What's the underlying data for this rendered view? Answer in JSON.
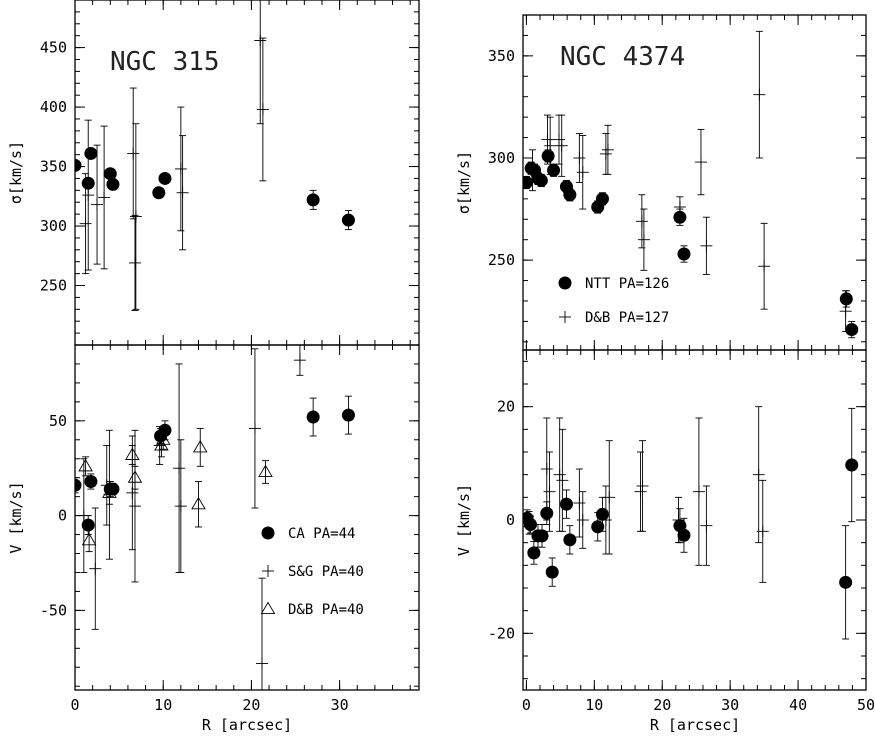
{
  "chart_data": [
    {
      "type": "scatter",
      "title": "NGC 315",
      "xlabel": "R [arcsec]",
      "panels": [
        {
          "name": "sigma",
          "ylabel": "σ[km/s]",
          "ylim": [
            200,
            490
          ],
          "yticks": [
            250,
            300,
            350,
            400,
            450
          ],
          "series": [
            {
              "name": "CA PA=44",
              "marker": "filled-circle",
              "points": [
                [
                  0,
                  351,
                  0
                ],
                [
                  1.5,
                  336,
                  0
                ],
                [
                  1.8,
                  361,
                  0
                ],
                [
                  4.0,
                  344,
                  0
                ],
                [
                  4.3,
                  335,
                  0
                ],
                [
                  9.5,
                  328,
                  0
                ],
                [
                  10.2,
                  340,
                  0
                ],
                [
                  27,
                  322,
                  8
                ],
                [
                  31,
                  305,
                  8
                ]
              ]
            },
            {
              "name": "S&G PA=40",
              "marker": "plus",
              "points": [
                [
                  1.5,
                  326,
                  63
                ],
                [
                  2.5,
                  318,
                  50
                ],
                [
                  3.3,
                  324,
                  60
                ],
                [
                  6.6,
                  361,
                  55
                ],
                [
                  6.9,
                  308,
                  78
                ],
                [
                  12,
                  348,
                  52
                ],
                [
                  12.2,
                  328,
                  48
                ],
                [
                  21.0,
                  456,
                  70
                ],
                [
                  21.3,
                  398,
                  60
                ],
                [
                  6.8,
                  269,
                  40
                ],
                [
                  1.2,
                  302,
                  42
                ]
              ]
            }
          ]
        },
        {
          "name": "velocity",
          "ylabel": "V [km/s]",
          "ylim": [
            -92,
            90
          ],
          "yticks": [
            -50,
            0,
            50
          ],
          "series": [
            {
              "name": "CA PA=44",
              "marker": "filled-circle",
              "points": [
                [
                  0,
                  16,
                  4
                ],
                [
                  1.5,
                  -5,
                  5
                ],
                [
                  1.8,
                  18,
                  4
                ],
                [
                  4.0,
                  14,
                  4
                ],
                [
                  4.3,
                  14,
                  3
                ],
                [
                  9.7,
                  42,
                  4
                ],
                [
                  10.2,
                  45,
                  5
                ],
                [
                  27,
                  52,
                  10
                ],
                [
                  31,
                  53,
                  10
                ]
              ]
            },
            {
              "name": "S&G PA=40",
              "marker": "plus",
              "points": [
                [
                  1.0,
                  0,
                  30
                ],
                [
                  2.3,
                  -28,
                  32
                ],
                [
                  3.6,
                  16,
                  21
                ],
                [
                  3.9,
                  11,
                  34
                ],
                [
                  6.5,
                  12,
                  30
                ],
                [
                  6.8,
                  5,
                  40
                ],
                [
                  11.8,
                  25,
                  55
                ],
                [
                  12.0,
                  5,
                  35
                ],
                [
                  20.4,
                  46,
                  42
                ],
                [
                  21.2,
                  -78,
                  45
                ],
                [
                  25.5,
                  82,
                  8
                ],
                [
                  9.6,
                  37,
                  10
                ]
              ]
            },
            {
              "name": "D&B PA=40",
              "marker": "open-triangle",
              "points": [
                [
                  1.2,
                  26,
                  5
                ],
                [
                  1.6,
                  -13,
                  6
                ],
                [
                  3.9,
                  12,
                  6
                ],
                [
                  6.5,
                  32,
                  5
                ],
                [
                  6.8,
                  20,
                  6
                ],
                [
                  9.8,
                  37,
                  6
                ],
                [
                  10.0,
                  40,
                  5
                ],
                [
                  14.2,
                  36,
                  10
                ],
                [
                  14.0,
                  6,
                  12
                ],
                [
                  21.6,
                  23,
                  6
                ]
              ]
            }
          ]
        }
      ],
      "xlim": [
        0,
        39
      ],
      "xticks": [
        0,
        10,
        20,
        30
      ],
      "legend": [
        {
          "marker": "filled-circle",
          "label": "CA PA=44"
        },
        {
          "marker": "plus",
          "label": "S&G PA=40"
        },
        {
          "marker": "open-triangle",
          "label": "D&B PA=40"
        }
      ],
      "legend_position": "lower-right of velocity panel"
    },
    {
      "type": "scatter",
      "title": "NGC 4374",
      "xlabel": "R [arcsec]",
      "panels": [
        {
          "name": "sigma",
          "ylabel": "σ[km/s]",
          "ylim": [
            206,
            370
          ],
          "yticks": [
            250,
            300,
            350
          ],
          "series": [
            {
              "name": "NTT PA=126",
              "marker": "filled-circle",
              "points": [
                [
                  0,
                  288,
                  3
                ],
                [
                  0.7,
                  295,
                  3
                ],
                [
                  1.2,
                  294,
                  3
                ],
                [
                  1.7,
                  290,
                  3
                ],
                [
                  2.2,
                  289,
                  3
                ],
                [
                  3.2,
                  301,
                  3
                ],
                [
                  4.0,
                  294,
                  3
                ],
                [
                  5.9,
                  286,
                  3
                ],
                [
                  6.4,
                  282,
                  3
                ],
                [
                  10.5,
                  276,
                  3
                ],
                [
                  11.2,
                  280,
                  3
                ],
                [
                  22.6,
                  271,
                  4
                ],
                [
                  23.2,
                  253,
                  4
                ],
                [
                  47.1,
                  231,
                  4
                ],
                [
                  47.9,
                  216,
                  4
                ]
              ]
            },
            {
              "name": "D&B PA=127",
              "marker": "plus",
              "points": [
                [
                  0.9,
                  294,
                  10
                ],
                [
                  3.1,
                  309,
                  12
                ],
                [
                  3.5,
                  306,
                  14
                ],
                [
                  4.8,
                  309,
                  12
                ],
                [
                  5.2,
                  306,
                  15
                ],
                [
                  7.8,
                  300,
                  12
                ],
                [
                  8.3,
                  293,
                  18
                ],
                [
                  11.7,
                  302,
                  10
                ],
                [
                  12.0,
                  304,
                  12
                ],
                [
                  17.0,
                  269,
                  13
                ],
                [
                  17.3,
                  260,
                  15
                ],
                [
                  22.6,
                  276,
                  5
                ],
                [
                  25.7,
                  298,
                  16
                ],
                [
                  26.5,
                  257,
                  14
                ],
                [
                  34.3,
                  331,
                  31
                ],
                [
                  35.0,
                  247,
                  21
                ],
                [
                  47.0,
                  225,
                  10
                ]
              ]
            }
          ]
        },
        {
          "name": "velocity",
          "ylabel": "V [km/s]",
          "ylim": [
            -30,
            30
          ],
          "yticks": [
            -20,
            0,
            20
          ],
          "series": [
            {
              "name": "NTT PA=126",
              "marker": "filled-circle",
              "points": [
                [
                  0.1,
                  0.3,
                  1.5
                ],
                [
                  0.6,
                  -0.8,
                  1.5
                ],
                [
                  1.1,
                  -5.8,
                  2
                ],
                [
                  1.7,
                  -2.8,
                  2
                ],
                [
                  2.3,
                  -2.8,
                  2
                ],
                [
                  3.0,
                  1.2,
                  2
                ],
                [
                  3.8,
                  -9.2,
                  2.5
                ],
                [
                  5.9,
                  2.8,
                  2.5
                ],
                [
                  6.4,
                  -3.5,
                  2.5
                ],
                [
                  10.5,
                  -1.2,
                  2.5
                ],
                [
                  11.2,
                  1.0,
                  3
                ],
                [
                  22.6,
                  -1.0,
                  3
                ],
                [
                  23.2,
                  -2.7,
                  3
                ],
                [
                  47.0,
                  -11.0,
                  10
                ],
                [
                  47.9,
                  9.7,
                  10
                ]
              ]
            },
            {
              "name": "D&B PA=127",
              "marker": "plus",
              "points": [
                [
                  0.4,
                  -0.5,
                  2
                ],
                [
                  3.0,
                  9,
                  9
                ],
                [
                  3.4,
                  5,
                  7
                ],
                [
                  4.9,
                  8,
                  10
                ],
                [
                  5.3,
                  7,
                  9
                ],
                [
                  7.8,
                  3,
                  6
                ],
                [
                  8.3,
                  0,
                  5
                ],
                [
                  11.7,
                  0,
                  6
                ],
                [
                  12.2,
                  4,
                  10
                ],
                [
                  16.8,
                  5,
                  7
                ],
                [
                  17.1,
                  6,
                  8
                ],
                [
                  22.4,
                  0,
                  4
                ],
                [
                  25.4,
                  5,
                  13
                ],
                [
                  26.5,
                  -1,
                  7
                ],
                [
                  34.2,
                  8,
                  12
                ],
                [
                  34.8,
                  -2,
                  9
                ]
              ]
            }
          ]
        }
      ],
      "xlim": [
        -0.5,
        50
      ],
      "xticks": [
        0,
        10,
        20,
        30,
        40,
        50
      ],
      "legend": [
        {
          "marker": "filled-circle",
          "label": "NTT PA=126"
        },
        {
          "marker": "plus",
          "label": "D&B PA=127"
        }
      ],
      "legend_position": "lower-left of sigma panel"
    }
  ]
}
